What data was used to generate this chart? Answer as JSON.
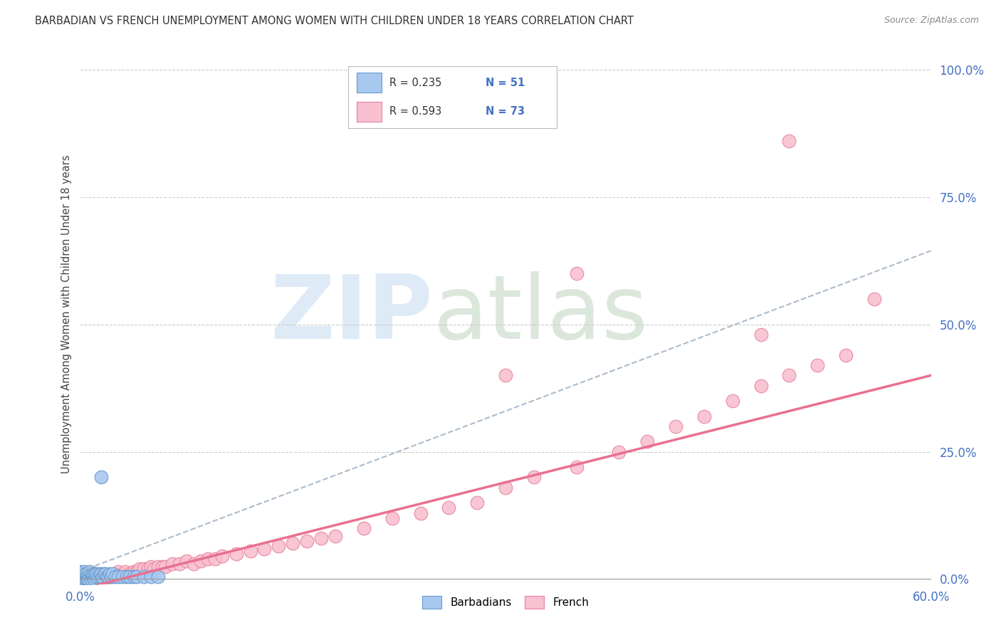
{
  "title": "BARBADIAN VS FRENCH UNEMPLOYMENT AMONG WOMEN WITH CHILDREN UNDER 18 YEARS CORRELATION CHART",
  "source": "Source: ZipAtlas.com",
  "ylabel": "Unemployment Among Women with Children Under 18 years",
  "xlim": [
    0.0,
    0.6
  ],
  "ylim": [
    -0.01,
    1.05
  ],
  "ytick_labels_right": [
    "100.0%",
    "75.0%",
    "50.0%",
    "25.0%",
    "0.0%"
  ],
  "ytick_vals_right": [
    1.0,
    0.75,
    0.5,
    0.25,
    0.0
  ],
  "barbadian_color": "#A8C8F0",
  "barbadian_edge_color": "#6699CC",
  "french_color": "#F8C0D0",
  "french_edge_color": "#E8809A",
  "barbadian_R": 0.235,
  "barbadian_N": 51,
  "french_R": 0.593,
  "french_N": 73,
  "blue_trendline_color": "#AACCEE",
  "pink_trendline_color": "#E87090",
  "background_color": "#FFFFFF",
  "grid_color": "#CCCCCC",
  "barbadian_x": [
    0.0,
    0.0,
    0.0,
    0.0,
    0.001,
    0.001,
    0.002,
    0.002,
    0.003,
    0.003,
    0.004,
    0.004,
    0.005,
    0.005,
    0.005,
    0.006,
    0.006,
    0.007,
    0.007,
    0.008,
    0.008,
    0.009,
    0.009,
    0.01,
    0.01,
    0.011,
    0.011,
    0.012,
    0.013,
    0.014,
    0.015,
    0.015,
    0.016,
    0.017,
    0.018,
    0.019,
    0.02,
    0.021,
    0.022,
    0.023,
    0.025,
    0.027,
    0.03,
    0.033,
    0.035,
    0.038,
    0.04,
    0.045,
    0.05,
    0.055,
    0.015
  ],
  "barbadian_y": [
    0.0,
    0.005,
    0.01,
    0.015,
    0.0,
    0.01,
    0.0,
    0.01,
    0.005,
    0.015,
    0.0,
    0.01,
    0.0,
    0.005,
    0.01,
    0.0,
    0.01,
    0.005,
    0.015,
    0.0,
    0.01,
    0.005,
    0.01,
    0.0,
    0.01,
    0.005,
    0.01,
    0.01,
    0.005,
    0.01,
    0.005,
    0.01,
    0.005,
    0.01,
    0.01,
    0.005,
    0.005,
    0.01,
    0.005,
    0.01,
    0.005,
    0.005,
    0.005,
    0.005,
    0.005,
    0.005,
    0.005,
    0.005,
    0.005,
    0.005,
    0.2
  ],
  "french_x": [
    0.0,
    0.001,
    0.002,
    0.003,
    0.004,
    0.005,
    0.005,
    0.006,
    0.007,
    0.008,
    0.009,
    0.01,
    0.011,
    0.012,
    0.013,
    0.015,
    0.016,
    0.018,
    0.02,
    0.022,
    0.025,
    0.027,
    0.03,
    0.032,
    0.035,
    0.038,
    0.04,
    0.042,
    0.045,
    0.048,
    0.05,
    0.052,
    0.055,
    0.058,
    0.06,
    0.065,
    0.07,
    0.075,
    0.08,
    0.085,
    0.09,
    0.095,
    0.1,
    0.11,
    0.12,
    0.13,
    0.14,
    0.15,
    0.16,
    0.17,
    0.18,
    0.2,
    0.22,
    0.24,
    0.26,
    0.28,
    0.3,
    0.32,
    0.35,
    0.38,
    0.4,
    0.42,
    0.44,
    0.46,
    0.48,
    0.5,
    0.52,
    0.54,
    0.56,
    0.3,
    0.35,
    0.5,
    0.48
  ],
  "french_y": [
    0.005,
    0.0,
    0.005,
    0.0,
    0.005,
    0.0,
    0.005,
    0.0,
    0.005,
    0.0,
    0.005,
    0.0,
    0.005,
    0.005,
    0.005,
    0.005,
    0.005,
    0.005,
    0.005,
    0.005,
    0.01,
    0.015,
    0.01,
    0.015,
    0.01,
    0.015,
    0.015,
    0.02,
    0.02,
    0.02,
    0.025,
    0.02,
    0.025,
    0.025,
    0.025,
    0.03,
    0.03,
    0.035,
    0.03,
    0.035,
    0.04,
    0.04,
    0.045,
    0.05,
    0.055,
    0.06,
    0.065,
    0.07,
    0.075,
    0.08,
    0.085,
    0.1,
    0.12,
    0.13,
    0.14,
    0.15,
    0.18,
    0.2,
    0.22,
    0.25,
    0.27,
    0.3,
    0.32,
    0.35,
    0.38,
    0.4,
    0.42,
    0.44,
    0.55,
    0.4,
    0.6,
    0.86,
    0.48
  ]
}
